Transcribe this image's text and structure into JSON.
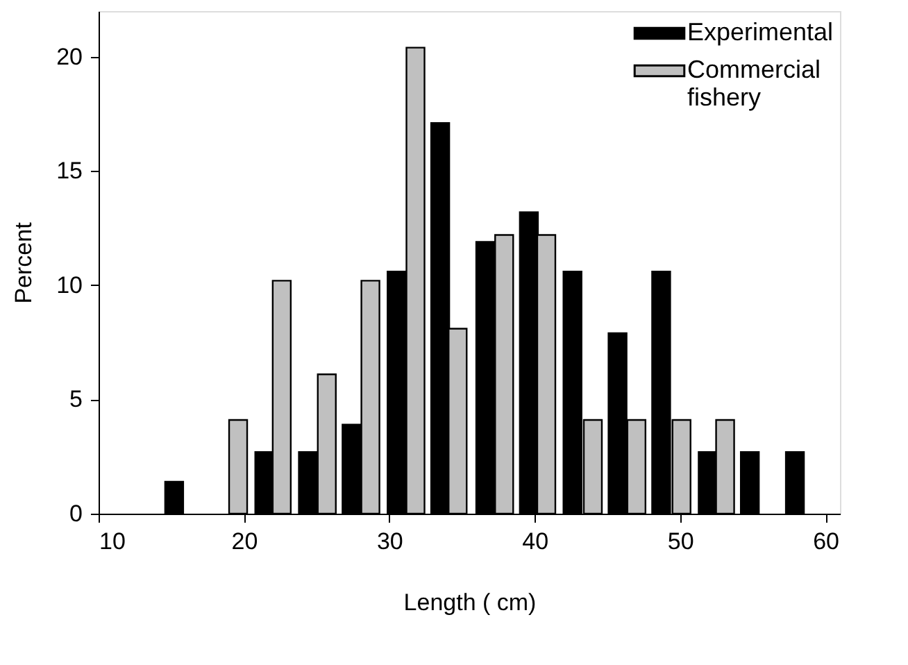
{
  "chart_data": {
    "type": "bar",
    "xlabel": "Length  ( cm)",
    "ylabel": "Percent",
    "series": [
      {
        "name": "Experimental",
        "color": "#000000",
        "x": [
          15.2,
          21.4,
          24.4,
          27.4,
          30.5,
          33.5,
          36.6,
          39.6,
          42.6,
          45.7,
          48.7,
          51.9,
          54.8,
          57.9
        ],
        "values": [
          1.4,
          2.7,
          2.7,
          3.9,
          10.6,
          17.1,
          11.9,
          13.2,
          10.6,
          7.9,
          10.6,
          2.7,
          2.7,
          2.7
        ]
      },
      {
        "name": "Commercial fishery",
        "color": "#c0c0c0",
        "x": [
          19.6,
          22.6,
          25.7,
          28.7,
          31.8,
          34.7,
          37.9,
          40.8,
          44.0,
          47.0,
          50.1,
          53.1
        ],
        "values": [
          4.1,
          10.2,
          6.1,
          10.2,
          20.4,
          8.1,
          12.2,
          12.2,
          4.1,
          4.1,
          4.1,
          4.1
        ]
      }
    ],
    "xlim": [
      10,
      61
    ],
    "xticks": [
      10,
      20,
      30,
      40,
      50,
      60
    ],
    "ylim": [
      0,
      22
    ],
    "yticks": [
      0,
      5,
      10,
      15,
      20
    ],
    "grid": false,
    "legend": "top right"
  }
}
